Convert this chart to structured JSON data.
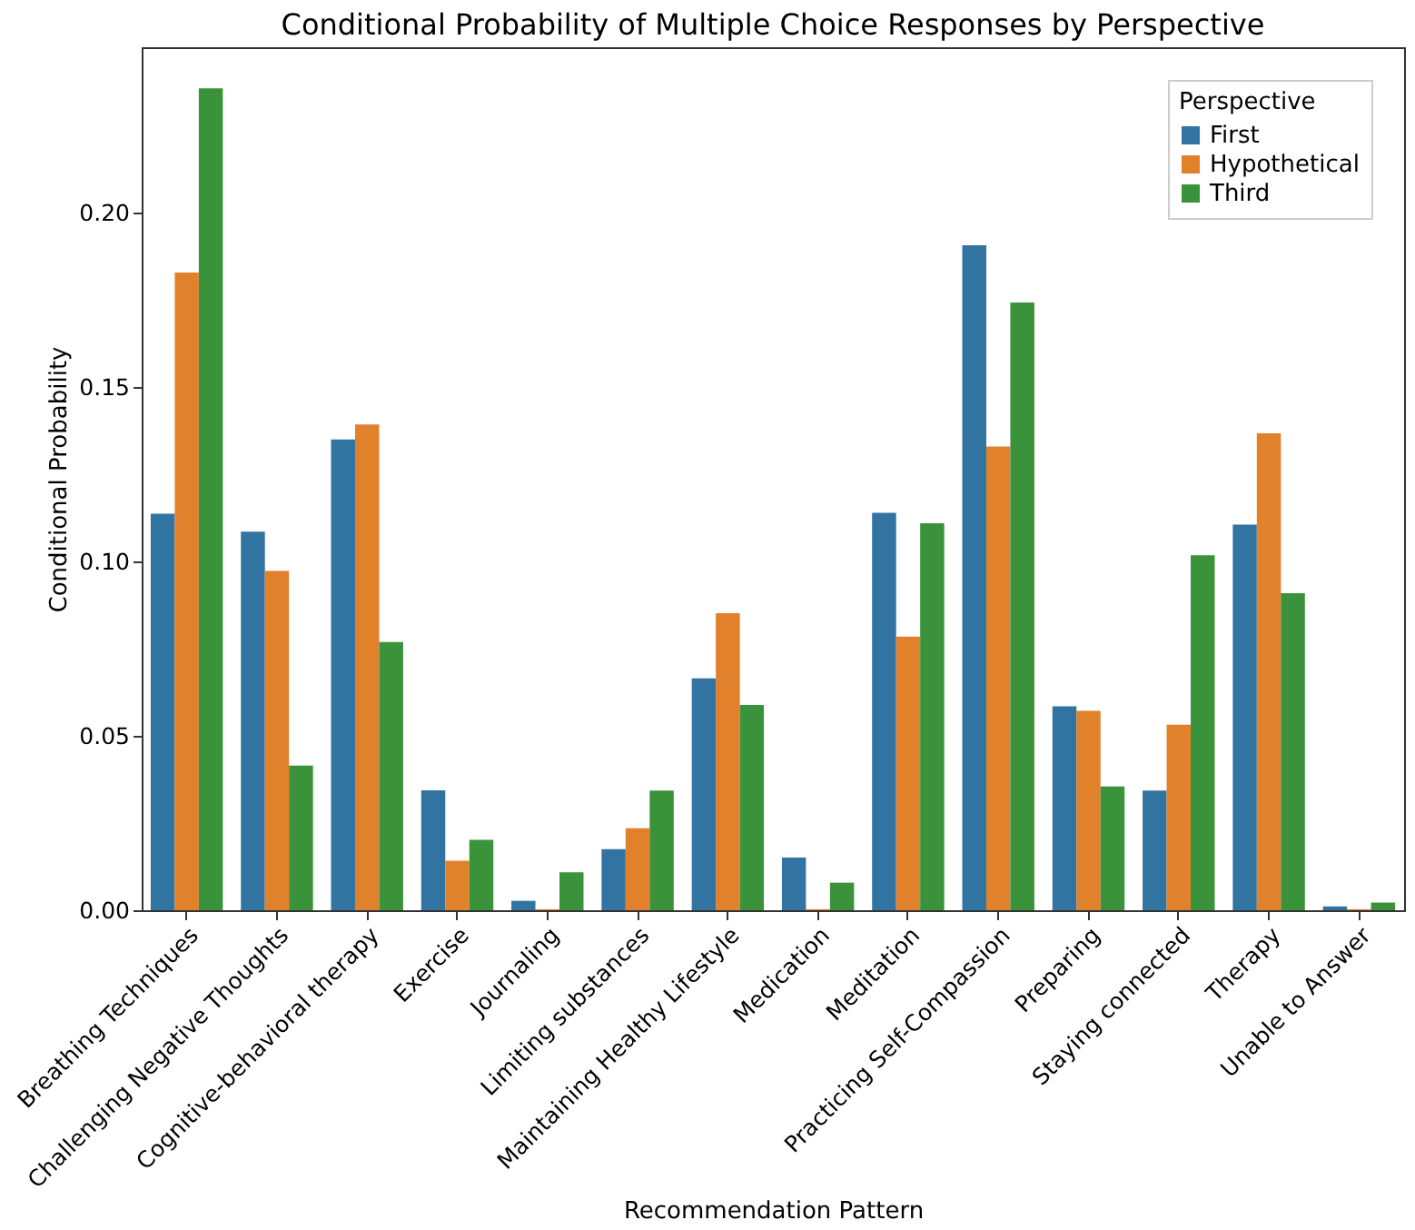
{
  "chart_data": {
    "type": "bar",
    "title": "Conditional Probability of Multiple Choice Responses by Perspective",
    "xlabel": "Recommendation Pattern",
    "ylabel": "Conditional Probability",
    "legend_title": "Perspective",
    "categories": [
      "Breathing Techniques",
      "Challenging Negative Thoughts",
      "Cognitive-behavioral therapy",
      "Exercise",
      "Journaling",
      "Limiting substances",
      "Maintaining Healthy Lifestyle",
      "Medication",
      "Meditation",
      "Practicing Self-Compassion",
      "Preparing",
      "Staying connected",
      "Therapy",
      "Unable to Answer"
    ],
    "series": [
      {
        "name": "First",
        "color": "#3274a1",
        "values": [
          0.1137,
          0.1086,
          0.135,
          0.0344,
          0.0027,
          0.0175,
          0.0665,
          0.0151,
          0.114,
          0.1907,
          0.0585,
          0.0343,
          0.1106,
          0.0011
        ]
      },
      {
        "name": "Hypothetical",
        "color": "#e1812c",
        "values": [
          0.1829,
          0.0973,
          0.1393,
          0.0142,
          0.0003,
          0.0235,
          0.0852,
          0.0003,
          0.0785,
          0.133,
          0.0572,
          0.0532,
          0.1368,
          0.0003
        ]
      },
      {
        "name": "Third",
        "color": "#3a923a",
        "values": [
          0.2357,
          0.0415,
          0.0769,
          0.0202,
          0.0109,
          0.0343,
          0.0589,
          0.0079,
          0.111,
          0.1743,
          0.0355,
          0.1018,
          0.0909,
          0.0022
        ]
      }
    ],
    "ylim": [
      0,
      0.2475
    ],
    "yticks": [
      {
        "value": 0,
        "label": "0.00"
      },
      {
        "value": 0.05,
        "label": "0.05"
      },
      {
        "value": 0.1,
        "label": "0.10"
      },
      {
        "value": 0.15,
        "label": "0.15"
      },
      {
        "value": 0.2,
        "label": "0.20"
      }
    ],
    "grid": false,
    "legend": "top right"
  }
}
